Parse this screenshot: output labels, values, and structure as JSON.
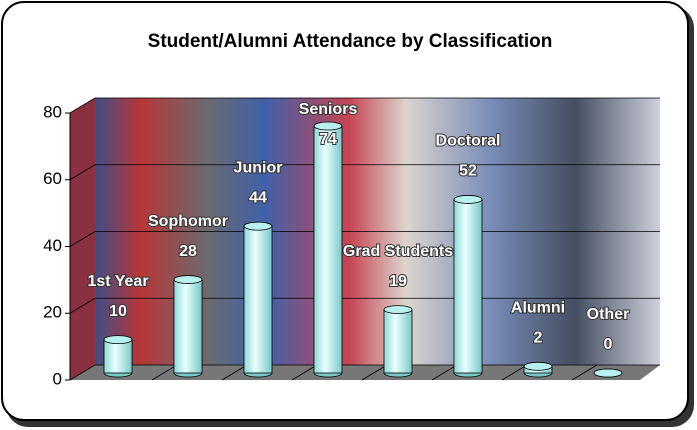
{
  "chart_data": {
    "type": "bar",
    "title": "Student/Alumni Attendance by Classification",
    "categories": [
      "1st Year",
      "Sophomor",
      "Junior",
      "Seniors",
      "Grad Students",
      "Doctoral",
      "Alumni",
      "Other"
    ],
    "values": [
      10,
      28,
      44,
      74,
      19,
      52,
      2,
      0
    ],
    "color": "#b8f0f0",
    "ylim": [
      0,
      80
    ],
    "yticks": [
      0,
      20,
      40,
      60,
      80
    ],
    "grid": true
  }
}
